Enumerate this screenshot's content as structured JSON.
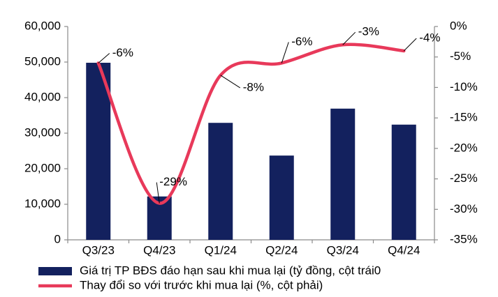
{
  "chart_data": {
    "type": "bar-line",
    "categories": [
      "Q3/23",
      "Q4/23",
      "Q1/24",
      "Q2/24",
      "Q3/24",
      "Q4/24"
    ],
    "series": [
      {
        "name": "Giá trị TP BĐS đáo hạn sau khi mua lại (tỷ đồng, cột trái0",
        "color": "#13215e",
        "type": "bar",
        "values": [
          49800,
          12200,
          32900,
          23700,
          36900,
          32400
        ]
      },
      {
        "name": "Thay đổi so với trước khi mua lại (%, cột phải)",
        "color": "#e8395a",
        "type": "line",
        "axis": "y2",
        "values": [
          -6,
          -29,
          -8,
          -6,
          -3,
          -4
        ],
        "value_labels": [
          "-6%",
          "-29%",
          "-8%",
          "-6%",
          "-3%",
          "-4%"
        ]
      }
    ],
    "ylim": [
      0,
      60000
    ],
    "yticks": [
      0,
      {
        "value": 10000,
        "label": "10,000"
      },
      {
        "value": 20000,
        "label": "20,000"
      },
      {
        "value": 30000,
        "label": "30,000"
      },
      {
        "value": 40000,
        "label": "40,000"
      },
      {
        "value": 50000,
        "label": "50,000"
      },
      {
        "value": 60000,
        "label": "60,000"
      }
    ],
    "y2lim": [
      -35,
      0
    ],
    "y2ticks": [
      {
        "value": 0,
        "label": "0%"
      },
      {
        "value": -5,
        "label": "-5%"
      },
      {
        "value": -10,
        "label": "-10%"
      },
      {
        "value": -15,
        "label": "-15%"
      },
      {
        "value": -20,
        "label": "-20%"
      },
      {
        "value": -25,
        "label": "-25%"
      },
      {
        "value": -30,
        "label": "-30%"
      },
      {
        "value": -35,
        "label": "-35%"
      }
    ],
    "legend": "bottom"
  }
}
